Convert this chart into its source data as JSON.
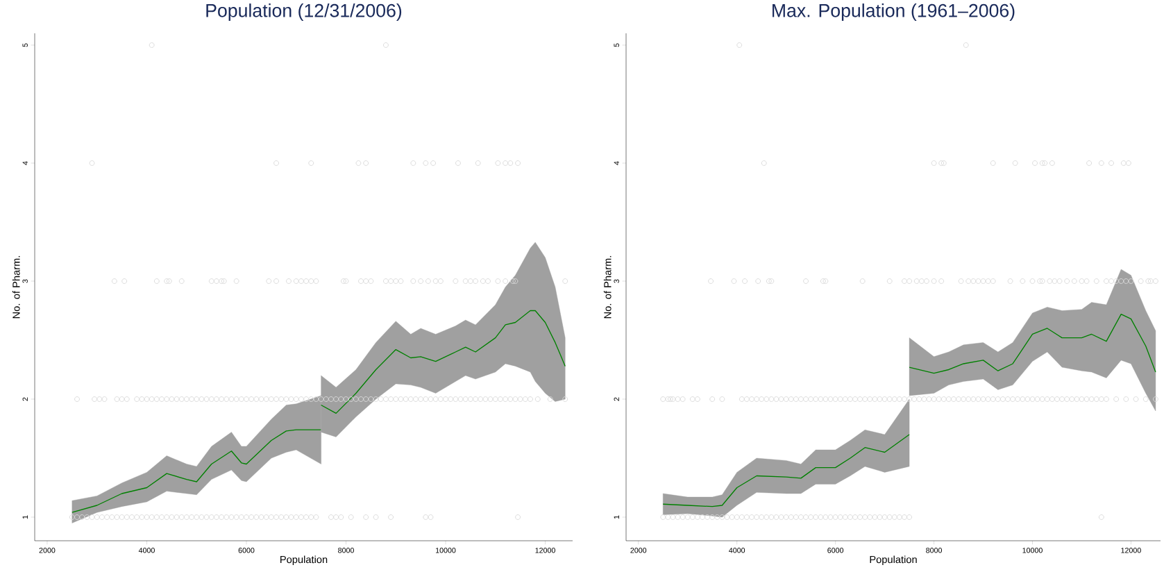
{
  "chart_data": [
    {
      "type": "scatter",
      "title": "Population (12/31/2006)",
      "xlabel": "Population",
      "ylabel": "No. of Pharm.",
      "xlim": [
        1750,
        12550
      ],
      "ylim": [
        0.8,
        5.1
      ],
      "xticks": [
        2000,
        4000,
        6000,
        8000,
        10000,
        12000
      ],
      "yticks": [
        1,
        2,
        3,
        4,
        5
      ],
      "series": [
        {
          "type": "scatter",
          "marker": "circle",
          "color": "#d9d9d9",
          "x": [
            2500,
            2600,
            2700,
            2800,
            2900,
            3000,
            3100,
            3200,
            3300,
            3400,
            3500,
            3600,
            3700,
            3800,
            3900,
            4000,
            4100,
            4200,
            4300,
            4400,
            4500,
            4600,
            4700,
            4800,
            4900,
            5000,
            5100,
            5200,
            5300,
            5400,
            5500,
            5600,
            5700,
            5800,
            5900,
            6000,
            6100,
            6200,
            6300,
            6400,
            6500,
            6600,
            6700,
            6800,
            6900,
            7000,
            7100,
            7200,
            7300,
            7400,
            7700,
            7800,
            7900,
            8100,
            8400,
            8600,
            8900,
            9600,
            9700,
            11450
          ],
          "values": [
            1,
            1,
            1,
            1,
            1,
            1,
            1,
            1,
            1,
            1,
            1,
            1,
            1,
            1,
            1,
            1,
            1,
            1,
            1,
            1,
            1,
            1,
            1,
            1,
            1,
            1,
            1,
            1,
            1,
            1,
            1,
            1,
            1,
            1,
            1,
            1,
            1,
            1,
            1,
            1,
            1,
            1,
            1,
            1,
            1,
            1,
            1,
            1,
            1,
            1,
            1,
            1,
            1,
            1,
            1,
            1,
            1,
            1,
            1,
            1
          ]
        },
        {
          "type": "scatter",
          "marker": "circle",
          "color": "#d9d9d9",
          "x": [
            2600,
            2950,
            3050,
            3150,
            3400,
            3500,
            3600,
            3800,
            3900,
            4000,
            4100,
            4200,
            4300,
            4400,
            4500,
            4600,
            4700,
            4800,
            4900,
            5000,
            5100,
            5200,
            5300,
            5400,
            5500,
            5600,
            5700,
            5800,
            5900,
            6000,
            6100,
            6200,
            6300,
            6400,
            6500,
            6600,
            6700,
            6800,
            6900,
            7000,
            7100,
            7200,
            7300,
            7400,
            7500,
            7600,
            7700,
            7800,
            7900,
            8000,
            8100,
            8200,
            8300,
            8400,
            8500,
            8600,
            8700,
            8800,
            8900,
            9000,
            9100,
            9200,
            9300,
            9400,
            9500,
            9600,
            9700,
            9800,
            9900,
            10000,
            10100,
            10200,
            10300,
            10400,
            10500,
            10600,
            10700,
            10800,
            10900,
            11000,
            11100,
            11200,
            11300,
            11400,
            11500,
            11600,
            11700,
            11850,
            12100,
            12400
          ],
          "values": [
            2,
            2,
            2,
            2,
            2,
            2,
            2,
            2,
            2,
            2,
            2,
            2,
            2,
            2,
            2,
            2,
            2,
            2,
            2,
            2,
            2,
            2,
            2,
            2,
            2,
            2,
            2,
            2,
            2,
            2,
            2,
            2,
            2,
            2,
            2,
            2,
            2,
            2,
            2,
            2,
            2,
            2,
            2,
            2,
            2,
            2,
            2,
            2,
            2,
            2,
            2,
            2,
            2,
            2,
            2,
            2,
            2,
            2,
            2,
            2,
            2,
            2,
            2,
            2,
            2,
            2,
            2,
            2,
            2,
            2,
            2,
            2,
            2,
            2,
            2,
            2,
            2,
            2,
            2,
            2,
            2,
            2,
            2,
            2,
            2,
            2,
            2,
            2,
            2,
            2
          ]
        },
        {
          "type": "scatter",
          "marker": "circle",
          "color": "#d9d9d9",
          "x": [
            3350,
            3550,
            4200,
            4400,
            4450,
            4700,
            5300,
            5400,
            5500,
            5550,
            5800,
            6450,
            6600,
            6850,
            7000,
            7100,
            7200,
            7300,
            7400,
            7950,
            8000,
            8300,
            8400,
            8500,
            8800,
            8900,
            9000,
            9100,
            9350,
            9500,
            9650,
            9800,
            9900,
            10200,
            10400,
            10500,
            10600,
            10750,
            10850,
            11050,
            11200,
            11350,
            11400,
            12400
          ],
          "values": [
            3,
            3,
            3,
            3,
            3,
            3,
            3,
            3,
            3,
            3,
            3,
            3,
            3,
            3,
            3,
            3,
            3,
            3,
            3,
            3,
            3,
            3,
            3,
            3,
            3,
            3,
            3,
            3,
            3,
            3,
            3,
            3,
            3,
            3,
            3,
            3,
            3,
            3,
            3,
            3,
            3,
            3,
            3,
            3
          ]
        },
        {
          "type": "scatter",
          "marker": "circle",
          "color": "#d9d9d9",
          "x": [
            2900,
            6600,
            7300,
            8250,
            8400,
            9350,
            9600,
            9750,
            10250,
            10650,
            11050,
            11200,
            11300,
            11450
          ],
          "values": [
            4,
            4,
            4,
            4,
            4,
            4,
            4,
            4,
            4,
            4,
            4,
            4,
            4,
            4
          ]
        },
        {
          "type": "scatter",
          "marker": "circle",
          "color": "#d9d9d9",
          "x": [
            4100,
            8800
          ],
          "values": [
            5,
            5
          ]
        },
        {
          "type": "line",
          "color": "#008000",
          "line_style": "solid",
          "x": [
            2500,
            3000,
            3500,
            4000,
            4400,
            4800,
            5000,
            5300,
            5700,
            5900,
            6000,
            6500,
            6800,
            7000,
            7500
          ],
          "values": [
            1.04,
            1.1,
            1.2,
            1.25,
            1.37,
            1.32,
            1.3,
            1.45,
            1.56,
            1.46,
            1.45,
            1.65,
            1.73,
            1.74,
            1.74
          ],
          "lower": [
            0.95,
            1.04,
            1.09,
            1.13,
            1.22,
            1.2,
            1.19,
            1.32,
            1.4,
            1.31,
            1.3,
            1.5,
            1.55,
            1.57,
            1.45
          ],
          "upper": [
            1.14,
            1.18,
            1.29,
            1.38,
            1.52,
            1.45,
            1.43,
            1.6,
            1.72,
            1.6,
            1.6,
            1.83,
            1.95,
            1.96,
            2.03
          ]
        },
        {
          "type": "line",
          "color": "#008000",
          "line_style": "solid",
          "x": [
            7500,
            7800,
            8200,
            8600,
            9000,
            9300,
            9500,
            9800,
            10200,
            10400,
            10600,
            11000,
            11200,
            11400,
            11700,
            11800,
            12000,
            12200,
            12400
          ],
          "values": [
            1.95,
            1.88,
            2.05,
            2.25,
            2.42,
            2.35,
            2.36,
            2.32,
            2.4,
            2.44,
            2.4,
            2.52,
            2.63,
            2.65,
            2.75,
            2.75,
            2.65,
            2.48,
            2.28
          ],
          "lower": [
            1.72,
            1.68,
            1.85,
            2.0,
            2.13,
            2.12,
            2.1,
            2.05,
            2.15,
            2.2,
            2.17,
            2.23,
            2.3,
            2.28,
            2.23,
            2.15,
            2.05,
            1.98,
            2.0
          ],
          "upper": [
            2.2,
            2.1,
            2.25,
            2.48,
            2.66,
            2.55,
            2.6,
            2.55,
            2.62,
            2.67,
            2.63,
            2.8,
            2.95,
            3.05,
            3.28,
            3.33,
            3.2,
            2.95,
            2.52
          ]
        }
      ]
    },
    {
      "type": "scatter",
      "title": "Max. Population (1961–2006)",
      "xlabel": "Population",
      "ylabel": "No. of Pharm.",
      "xlim": [
        1750,
        12600
      ],
      "ylim": [
        0.8,
        5.1
      ],
      "xticks": [
        2000,
        4000,
        6000,
        8000,
        10000,
        12000
      ],
      "yticks": [
        1,
        2,
        3,
        4,
        5
      ],
      "series": [
        {
          "type": "scatter",
          "marker": "circle",
          "color": "#d9d9d9",
          "x": [
            2500,
            2600,
            2700,
            2800,
            2900,
            3000,
            3100,
            3200,
            3300,
            3400,
            3500,
            3600,
            3700,
            3800,
            3900,
            4000,
            4100,
            4200,
            4300,
            4400,
            4500,
            4600,
            4700,
            4800,
            4900,
            5000,
            5100,
            5200,
            5300,
            5400,
            5500,
            5600,
            5700,
            5800,
            5900,
            6000,
            6100,
            6200,
            6300,
            6400,
            6500,
            6600,
            6700,
            6800,
            6900,
            7000,
            7100,
            7200,
            7300,
            7400,
            7500,
            11400
          ],
          "values": [
            1,
            1,
            1,
            1,
            1,
            1,
            1,
            1,
            1,
            1,
            1,
            1,
            1,
            1,
            1,
            1,
            1,
            1,
            1,
            1,
            1,
            1,
            1,
            1,
            1,
            1,
            1,
            1,
            1,
            1,
            1,
            1,
            1,
            1,
            1,
            1,
            1,
            1,
            1,
            1,
            1,
            1,
            1,
            1,
            1,
            1,
            1,
            1,
            1,
            1,
            1,
            1
          ]
        },
        {
          "type": "scatter",
          "marker": "circle",
          "color": "#d9d9d9",
          "x": [
            2500,
            2600,
            2650,
            2700,
            2800,
            2900,
            3100,
            3200,
            3500,
            3700,
            4100,
            4200,
            4300,
            4400,
            4500,
            4600,
            4700,
            4800,
            4900,
            5000,
            5100,
            5200,
            5300,
            5400,
            5500,
            5600,
            5700,
            5800,
            5900,
            6000,
            6100,
            6200,
            6300,
            6400,
            6500,
            6600,
            6700,
            6800,
            6900,
            7000,
            7100,
            7200,
            7300,
            7400,
            7500,
            7600,
            7700,
            7800,
            7900,
            8000,
            8100,
            8200,
            8300,
            8400,
            8500,
            8600,
            8700,
            8800,
            8900,
            9000,
            9100,
            9200,
            9300,
            9400,
            9500,
            9600,
            9700,
            9800,
            9900,
            10000,
            10100,
            10200,
            10300,
            10400,
            10500,
            10600,
            10700,
            10800,
            10900,
            11000,
            11100,
            11200,
            11300,
            11400,
            11500,
            11700,
            11900,
            12100,
            12300,
            12500
          ],
          "values": [
            2,
            2,
            2,
            2,
            2,
            2,
            2,
            2,
            2,
            2,
            2,
            2,
            2,
            2,
            2,
            2,
            2,
            2,
            2,
            2,
            2,
            2,
            2,
            2,
            2,
            2,
            2,
            2,
            2,
            2,
            2,
            2,
            2,
            2,
            2,
            2,
            2,
            2,
            2,
            2,
            2,
            2,
            2,
            2,
            2,
            2,
            2,
            2,
            2,
            2,
            2,
            2,
            2,
            2,
            2,
            2,
            2,
            2,
            2,
            2,
            2,
            2,
            2,
            2,
            2,
            2,
            2,
            2,
            2,
            2,
            2,
            2,
            2,
            2,
            2,
            2,
            2,
            2,
            2,
            2,
            2,
            2,
            2,
            2,
            2,
            2,
            2,
            2,
            2,
            2
          ]
        },
        {
          "type": "scatter",
          "marker": "circle",
          "color": "#d9d9d9",
          "x": [
            3470,
            3940,
            4160,
            4430,
            4650,
            4700,
            5400,
            5750,
            5800,
            6550,
            7100,
            7400,
            7500,
            7650,
            7750,
            7850,
            8000,
            8150,
            8550,
            8700,
            8800,
            8900,
            9000,
            9100,
            9200,
            9550,
            9800,
            10000,
            10150,
            10200,
            10350,
            10450,
            10550,
            10700,
            10850,
            11000,
            11100,
            11300,
            11500,
            11600,
            11700,
            11800,
            11900,
            12000,
            12200,
            12350,
            12400,
            12500
          ],
          "values": [
            3,
            3,
            3,
            3,
            3,
            3,
            3,
            3,
            3,
            3,
            3,
            3,
            3,
            3,
            3,
            3,
            3,
            3,
            3,
            3,
            3,
            3,
            3,
            3,
            3,
            3,
            3,
            3,
            3,
            3,
            3,
            3,
            3,
            3,
            3,
            3,
            3,
            3,
            3,
            3,
            3,
            3,
            3,
            3,
            3,
            3,
            3,
            3
          ]
        },
        {
          "type": "scatter",
          "marker": "circle",
          "color": "#d9d9d9",
          "x": [
            4550,
            8000,
            8150,
            8200,
            9200,
            9650,
            10050,
            10200,
            10250,
            10400,
            11150,
            11400,
            11600,
            11850,
            11950
          ],
          "values": [
            4,
            4,
            4,
            4,
            4,
            4,
            4,
            4,
            4,
            4,
            4,
            4,
            4,
            4,
            4
          ]
        },
        {
          "type": "scatter",
          "marker": "circle",
          "color": "#d9d9d9",
          "x": [
            4050,
            8650
          ],
          "values": [
            5,
            5
          ]
        },
        {
          "type": "line",
          "color": "#008000",
          "line_style": "solid",
          "x": [
            2500,
            3000,
            3500,
            3700,
            4000,
            4400,
            5000,
            5300,
            5600,
            6000,
            6300,
            6600,
            7000,
            7500
          ],
          "values": [
            1.11,
            1.1,
            1.09,
            1.1,
            1.25,
            1.35,
            1.34,
            1.33,
            1.42,
            1.42,
            1.5,
            1.59,
            1.55,
            1.7
          ],
          "lower": [
            1.02,
            1.03,
            1.01,
            1.0,
            1.1,
            1.21,
            1.2,
            1.2,
            1.28,
            1.28,
            1.35,
            1.43,
            1.38,
            1.43
          ],
          "upper": [
            1.2,
            1.17,
            1.17,
            1.19,
            1.38,
            1.5,
            1.48,
            1.45,
            1.57,
            1.57,
            1.65,
            1.74,
            1.7,
            2.0
          ]
        },
        {
          "type": "line",
          "color": "#008000",
          "line_style": "solid",
          "x": [
            7500,
            8000,
            8300,
            8600,
            9000,
            9300,
            9600,
            10000,
            10300,
            10600,
            11000,
            11200,
            11500,
            11800,
            12000,
            12300,
            12500
          ],
          "values": [
            2.27,
            2.22,
            2.25,
            2.3,
            2.33,
            2.24,
            2.3,
            2.55,
            2.6,
            2.52,
            2.52,
            2.55,
            2.49,
            2.72,
            2.68,
            2.45,
            2.23
          ],
          "lower": [
            2.03,
            2.05,
            2.12,
            2.15,
            2.17,
            2.08,
            2.12,
            2.32,
            2.4,
            2.27,
            2.24,
            2.23,
            2.18,
            2.33,
            2.3,
            2.05,
            1.9
          ],
          "upper": [
            2.52,
            2.36,
            2.4,
            2.46,
            2.48,
            2.4,
            2.48,
            2.73,
            2.78,
            2.75,
            2.76,
            2.82,
            2.8,
            3.1,
            3.05,
            2.75,
            2.58
          ]
        }
      ]
    }
  ]
}
